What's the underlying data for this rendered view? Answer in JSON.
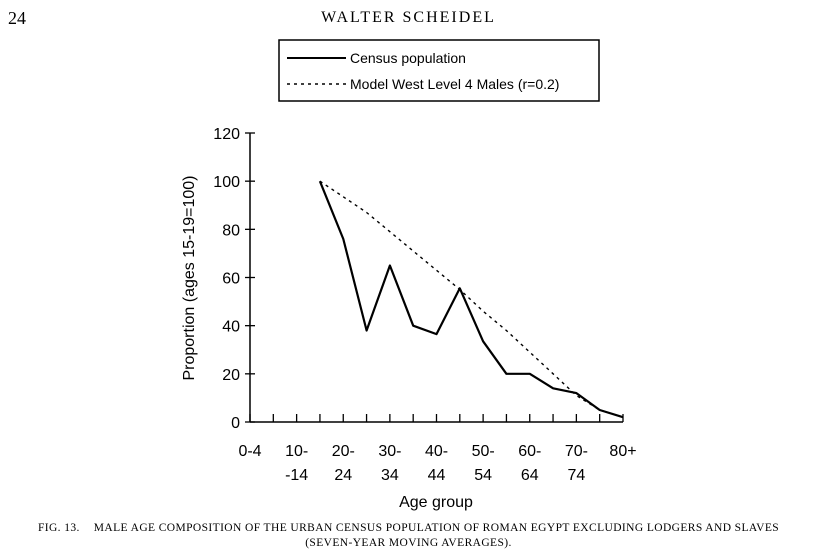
{
  "page": {
    "number": "24",
    "running_head": "WALTER SCHEIDEL"
  },
  "caption": {
    "label": "FIG. 13.",
    "text_line1": "MALE AGE COMPOSITION OF THE URBAN CENSUS POPULATION OF ROMAN EGYPT EXCLUDING LODGERS AND SLAVES",
    "text_line2": "(SEVEN-YEAR MOVING AVERAGES)."
  },
  "chart_data": {
    "type": "line",
    "title": "",
    "xlabel": "Age group",
    "ylabel": "Proportion (ages 15-19=100)",
    "ylim": [
      0,
      120
    ],
    "yticks": [
      0,
      20,
      40,
      60,
      80,
      100,
      120
    ],
    "grid": false,
    "legend_position": "top",
    "x_ticks": [
      {
        "line1": "0-4",
        "line2": ""
      },
      {
        "line1": "10-",
        "line2": "-14"
      },
      {
        "line1": "20-",
        "line2": "24"
      },
      {
        "line1": "30-",
        "line2": "34"
      },
      {
        "line1": "40-",
        "line2": "44"
      },
      {
        "line1": "50-",
        "line2": "54"
      },
      {
        "line1": "60-",
        "line2": "64"
      },
      {
        "line1": "70-",
        "line2": "74"
      },
      {
        "line1": "80+",
        "line2": ""
      }
    ],
    "x": [
      15,
      20,
      25,
      30,
      35,
      40,
      45,
      50,
      55,
      60,
      65,
      70,
      75,
      80
    ],
    "series": [
      {
        "name": "Census population",
        "style": "solid",
        "values": [
          100,
          76,
          38,
          65,
          40,
          36.5,
          55.5,
          33.5,
          20,
          20,
          14,
          12,
          5,
          2
        ]
      },
      {
        "name": "Model West Level 4 Males (r=0.2)",
        "style": "dotted",
        "values": [
          100,
          93.5,
          87,
          79,
          71,
          63,
          55,
          46,
          38,
          29,
          20,
          11,
          5,
          2
        ]
      }
    ]
  }
}
